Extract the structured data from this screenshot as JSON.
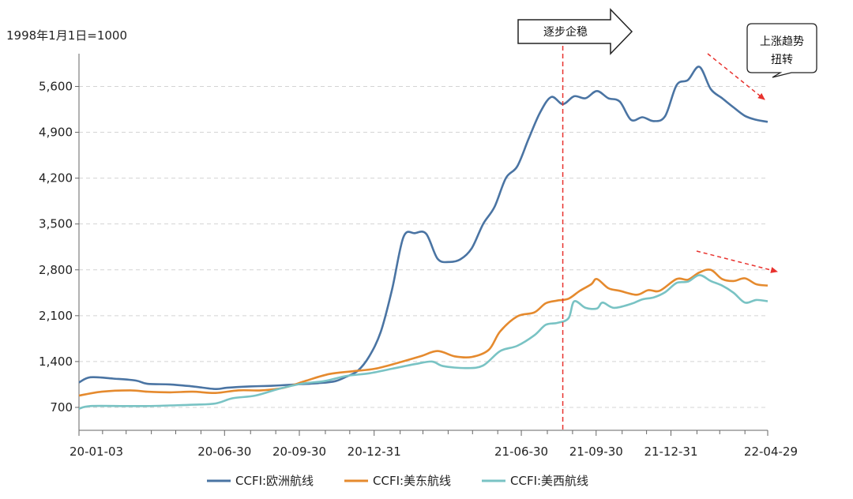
{
  "chart_data": {
    "type": "line",
    "unit_label": "1998年1月1日=1000",
    "ylim": [
      350,
      6100
    ],
    "yticks": [
      700,
      1400,
      2100,
      2800,
      3500,
      4200,
      4900,
      5600
    ],
    "ytick_labels": [
      "700",
      "1,400",
      "2,100",
      "2,800",
      "3,500",
      "4,200",
      "4,900",
      "5,600"
    ],
    "xlim": [
      "2020-01-03",
      "2022-04-29"
    ],
    "xticks": [
      {
        "date": "2020-01-03",
        "label": "20-01-03"
      },
      {
        "date": "2020-06-30",
        "label": "20-06-30"
      },
      {
        "date": "2020-09-30",
        "label": "20-09-30"
      },
      {
        "date": "2020-12-31",
        "label": "20-12-31"
      },
      {
        "date": "2021-06-30",
        "label": "21-06-30"
      },
      {
        "date": "2021-09-30",
        "label": "21-09-30"
      },
      {
        "date": "2021-12-31",
        "label": "21-12-31"
      },
      {
        "date": "2022-04-29",
        "label": "22-04-29"
      }
    ],
    "minor_ticks": [
      "2020-02-01",
      "2020-03-01",
      "2020-04-01",
      "2020-05-01",
      "2020-06-01",
      "2020-08-01",
      "2020-09-01",
      "2020-11-01",
      "2020-12-01",
      "2021-02-01",
      "2021-03-01",
      "2021-04-01",
      "2021-05-01",
      "2021-06-01",
      "2021-08-01",
      "2021-09-01",
      "2021-11-01",
      "2021-12-01",
      "2022-02-01",
      "2022-03-01",
      "2022-04-01"
    ],
    "grid": "horizontal-dashed",
    "legend_position": "bottom",
    "series": [
      {
        "name": "CCFI:欧洲航线",
        "color": "#4a74a3",
        "points": [
          [
            "2020-01-03",
            1080
          ],
          [
            "2020-01-17",
            1160
          ],
          [
            "2020-02-14",
            1140
          ],
          [
            "2020-03-13",
            1110
          ],
          [
            "2020-03-27",
            1060
          ],
          [
            "2020-04-24",
            1050
          ],
          [
            "2020-05-22",
            1020
          ],
          [
            "2020-06-19",
            980
          ],
          [
            "2020-07-03",
            1000
          ],
          [
            "2020-07-31",
            1020
          ],
          [
            "2020-08-28",
            1030
          ],
          [
            "2020-09-25",
            1050
          ],
          [
            "2020-10-23",
            1070
          ],
          [
            "2020-11-13",
            1100
          ],
          [
            "2020-11-27",
            1170
          ],
          [
            "2020-12-11",
            1260
          ],
          [
            "2020-12-25",
            1480
          ],
          [
            "2021-01-08",
            1850
          ],
          [
            "2021-01-22",
            2500
          ],
          [
            "2021-02-05",
            3300
          ],
          [
            "2021-02-19",
            3360
          ],
          [
            "2021-03-05",
            3350
          ],
          [
            "2021-03-19",
            2970
          ],
          [
            "2021-04-02",
            2920
          ],
          [
            "2021-04-16",
            2960
          ],
          [
            "2021-04-30",
            3130
          ],
          [
            "2021-05-14",
            3500
          ],
          [
            "2021-05-28",
            3760
          ],
          [
            "2021-06-11",
            4200
          ],
          [
            "2021-06-25",
            4380
          ],
          [
            "2021-07-09",
            4800
          ],
          [
            "2021-07-23",
            5200
          ],
          [
            "2021-08-06",
            5440
          ],
          [
            "2021-08-20",
            5330
          ],
          [
            "2021-09-03",
            5450
          ],
          [
            "2021-09-17",
            5420
          ],
          [
            "2021-10-01",
            5530
          ],
          [
            "2021-10-15",
            5420
          ],
          [
            "2021-10-29",
            5370
          ],
          [
            "2021-11-12",
            5090
          ],
          [
            "2021-11-26",
            5130
          ],
          [
            "2021-12-10",
            5070
          ],
          [
            "2021-12-24",
            5150
          ],
          [
            "2022-01-07",
            5620
          ],
          [
            "2022-01-21",
            5700
          ],
          [
            "2022-02-04",
            5900
          ],
          [
            "2022-02-18",
            5560
          ],
          [
            "2022-03-04",
            5420
          ],
          [
            "2022-03-18",
            5280
          ],
          [
            "2022-04-01",
            5150
          ],
          [
            "2022-04-15",
            5090
          ],
          [
            "2022-04-29",
            5060
          ]
        ]
      },
      {
        "name": "CCFI:美东航线",
        "color": "#e58a2e",
        "points": [
          [
            "2020-01-03",
            880
          ],
          [
            "2020-01-31",
            940
          ],
          [
            "2020-03-06",
            960
          ],
          [
            "2020-03-27",
            940
          ],
          [
            "2020-04-24",
            930
          ],
          [
            "2020-05-22",
            940
          ],
          [
            "2020-06-19",
            920
          ],
          [
            "2020-07-17",
            960
          ],
          [
            "2020-08-14",
            960
          ],
          [
            "2020-09-11",
            1000
          ],
          [
            "2020-10-09",
            1110
          ],
          [
            "2020-11-06",
            1210
          ],
          [
            "2020-12-04",
            1250
          ],
          [
            "2021-01-01",
            1290
          ],
          [
            "2021-01-29",
            1380
          ],
          [
            "2021-02-26",
            1480
          ],
          [
            "2021-03-19",
            1560
          ],
          [
            "2021-04-09",
            1480
          ],
          [
            "2021-04-30",
            1470
          ],
          [
            "2021-05-21",
            1580
          ],
          [
            "2021-06-04",
            1860
          ],
          [
            "2021-06-25",
            2090
          ],
          [
            "2021-07-16",
            2150
          ],
          [
            "2021-07-30",
            2290
          ],
          [
            "2021-08-13",
            2330
          ],
          [
            "2021-08-27",
            2360
          ],
          [
            "2021-09-10",
            2480
          ],
          [
            "2021-09-24",
            2580
          ],
          [
            "2021-10-01",
            2660
          ],
          [
            "2021-10-15",
            2520
          ],
          [
            "2021-10-29",
            2480
          ],
          [
            "2021-11-19",
            2420
          ],
          [
            "2021-12-03",
            2490
          ],
          [
            "2021-12-17",
            2480
          ],
          [
            "2022-01-07",
            2660
          ],
          [
            "2022-01-21",
            2650
          ],
          [
            "2022-02-04",
            2760
          ],
          [
            "2022-02-18",
            2800
          ],
          [
            "2022-03-04",
            2660
          ],
          [
            "2022-03-18",
            2630
          ],
          [
            "2022-04-01",
            2670
          ],
          [
            "2022-04-15",
            2580
          ],
          [
            "2022-04-29",
            2560
          ]
        ]
      },
      {
        "name": "CCFI:美西航线",
        "color": "#79c3c4",
        "points": [
          [
            "2020-01-03",
            680
          ],
          [
            "2020-01-17",
            720
          ],
          [
            "2020-02-28",
            720
          ],
          [
            "2020-03-27",
            720
          ],
          [
            "2020-04-24",
            730
          ],
          [
            "2020-05-22",
            740
          ],
          [
            "2020-06-19",
            760
          ],
          [
            "2020-07-10",
            840
          ],
          [
            "2020-08-07",
            880
          ],
          [
            "2020-09-04",
            980
          ],
          [
            "2020-10-02",
            1060
          ],
          [
            "2020-10-30",
            1100
          ],
          [
            "2020-11-27",
            1180
          ],
          [
            "2020-12-25",
            1220
          ],
          [
            "2021-01-22",
            1290
          ],
          [
            "2021-02-19",
            1360
          ],
          [
            "2021-03-12",
            1400
          ],
          [
            "2021-03-26",
            1330
          ],
          [
            "2021-04-23",
            1300
          ],
          [
            "2021-05-14",
            1340
          ],
          [
            "2021-06-04",
            1560
          ],
          [
            "2021-06-25",
            1640
          ],
          [
            "2021-07-16",
            1800
          ],
          [
            "2021-07-30",
            1960
          ],
          [
            "2021-08-13",
            1990
          ],
          [
            "2021-08-27",
            2060
          ],
          [
            "2021-09-03",
            2320
          ],
          [
            "2021-09-17",
            2220
          ],
          [
            "2021-10-01",
            2210
          ],
          [
            "2021-10-08",
            2300
          ],
          [
            "2021-10-22",
            2220
          ],
          [
            "2021-11-12",
            2280
          ],
          [
            "2021-11-26",
            2350
          ],
          [
            "2021-12-10",
            2380
          ],
          [
            "2021-12-24",
            2460
          ],
          [
            "2022-01-07",
            2600
          ],
          [
            "2022-01-21",
            2620
          ],
          [
            "2022-02-04",
            2720
          ],
          [
            "2022-02-18",
            2630
          ],
          [
            "2022-03-04",
            2560
          ],
          [
            "2022-03-18",
            2450
          ],
          [
            "2022-04-01",
            2300
          ],
          [
            "2022-04-15",
            2340
          ],
          [
            "2022-04-29",
            2320
          ]
        ]
      }
    ],
    "annotations": {
      "vertical_line_date": "2021-08-20",
      "arrow_label": "逐步企稳",
      "callout_label_line1": "上涨趋势",
      "callout_label_line2": "扭转"
    }
  }
}
